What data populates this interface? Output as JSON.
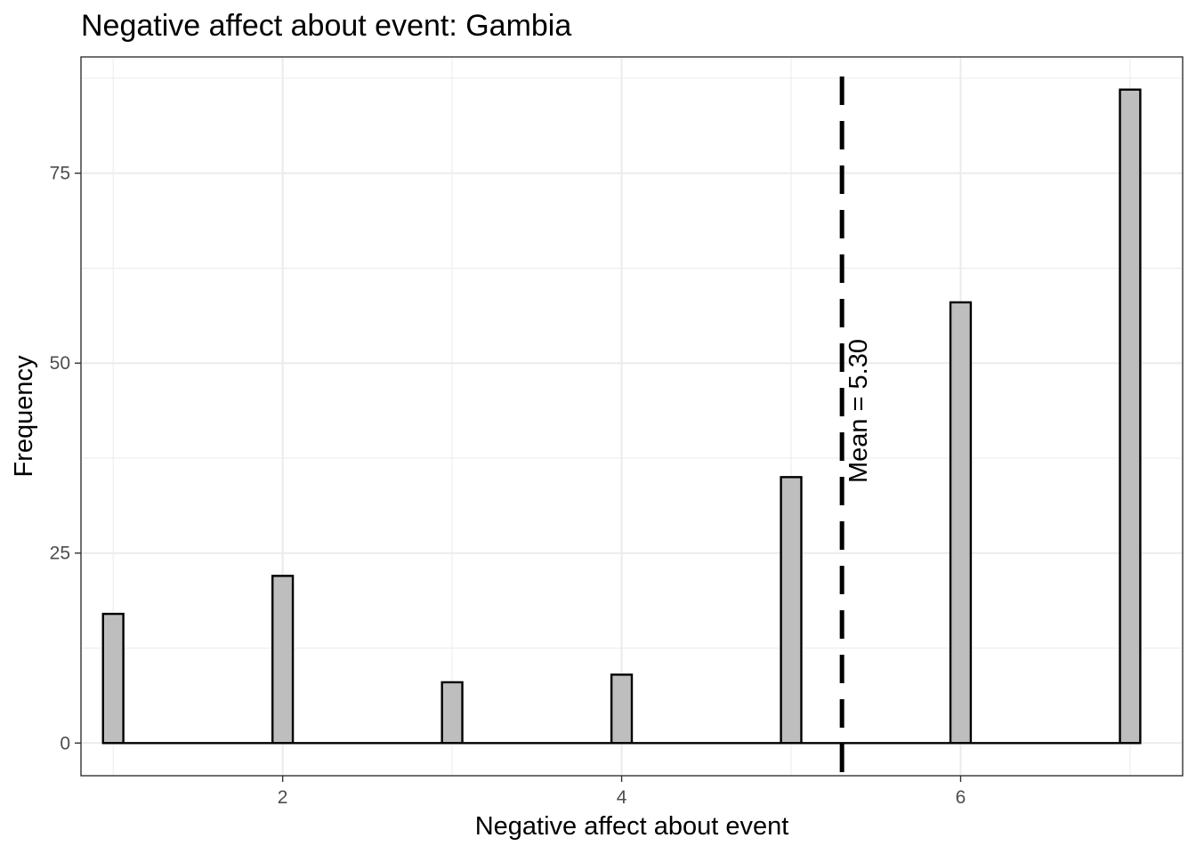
{
  "chart_data": {
    "type": "bar",
    "title": "Negative affect about event: Gambia",
    "xlabel": "Negative affect about event",
    "ylabel": "Frequency",
    "xlim": [
      0.81,
      7.31
    ],
    "ylim": [
      -4.3,
      90.3
    ],
    "x_ticks": [
      2,
      4,
      6
    ],
    "x_tick_labels": [
      "2",
      "4",
      "6"
    ],
    "y_ticks": [
      0,
      25,
      50,
      75
    ],
    "y_tick_labels": [
      "0",
      "25",
      "50",
      "75"
    ],
    "x_minor": [
      1,
      3,
      5,
      7
    ],
    "y_minor": [
      12.5,
      37.5,
      62.5,
      87.5
    ],
    "bin_width": 0.12,
    "bars": [
      {
        "x": 1,
        "count": 17
      },
      {
        "x": 2,
        "count": 22
      },
      {
        "x": 3,
        "count": 8
      },
      {
        "x": 4,
        "count": 9
      },
      {
        "x": 5,
        "count": 35
      },
      {
        "x": 6,
        "count": 58
      },
      {
        "x": 7,
        "count": 86
      }
    ],
    "mean": 5.3,
    "mean_label": "Mean = 5.30",
    "grid": true,
    "legend": "none",
    "bar_fill": "#bebebe",
    "bar_stroke": "#000000"
  }
}
